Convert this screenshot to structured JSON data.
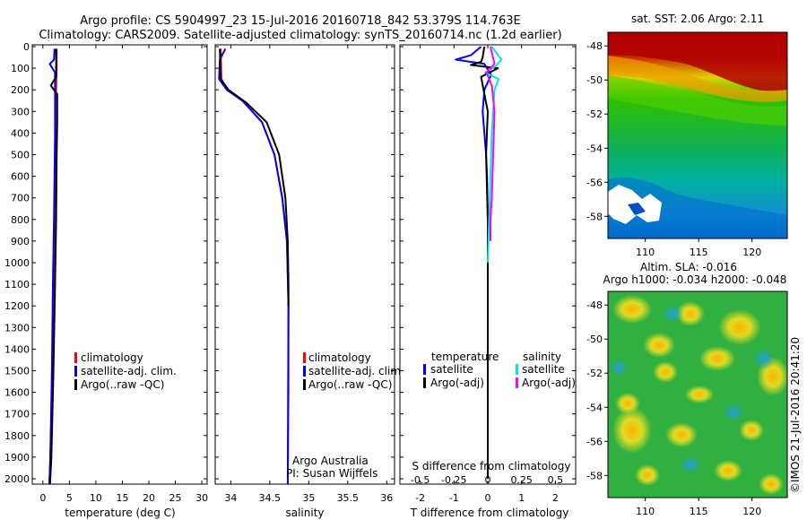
{
  "header": {
    "line1": "Argo profile: CS 5904997_23 15-Jul-2016 20160718_842 53.379S 114.763E",
    "line2": "Climatology: CARS2009. Satellite-adjusted climatology: synTS_20160714.nc (1.2d earlier)"
  },
  "colors": {
    "climatology": "#ff0000",
    "satellite": "#0000ff",
    "argo": "#000000",
    "sal_satellite": "#00e5e5",
    "sal_argo": "#ff00ff"
  },
  "chart_data": [
    {
      "type": "line",
      "xlabel": "temperature (deg C)",
      "xlim": [
        -2,
        31
      ],
      "xticks": [
        "0",
        "5",
        "10",
        "15",
        "20",
        "25",
        "30"
      ],
      "xtick_values": [
        0,
        5,
        10,
        15,
        20,
        25,
        30
      ],
      "ylim": [
        2060,
        0
      ],
      "yticks": [
        "0",
        "100",
        "200",
        "300",
        "400",
        "500",
        "600",
        "700",
        "800",
        "900",
        "1000",
        "1100",
        "1200",
        "1300",
        "1400",
        "1500",
        "1600",
        "1700",
        "1800",
        "1900",
        "2000"
      ],
      "ytick_values": [
        0,
        100,
        200,
        300,
        400,
        500,
        600,
        700,
        800,
        900,
        1000,
        1100,
        1200,
        1300,
        1400,
        1500,
        1600,
        1700,
        1800,
        1900,
        2000
      ],
      "legend": [
        "climatology",
        "satellite-adj. clim.",
        "Argo(..raw -QC)"
      ],
      "series": [
        {
          "name": "climatology",
          "x": [
            2.6,
            2.6,
            2.5,
            2.4,
            2.3,
            2.2,
            2.1,
            1.9,
            1.7,
            1.4,
            1.2
          ],
          "y": [
            10,
            100,
            200,
            400,
            600,
            800,
            1000,
            1300,
            1600,
            1900,
            2050
          ]
        },
        {
          "name": "satellite-adj. clim.",
          "x": [
            2.2,
            2.1,
            1.3,
            2.3,
            2.3,
            2.2,
            2.1,
            1.9,
            1.7,
            1.4,
            1.2
          ],
          "y": [
            10,
            60,
            80,
            120,
            400,
            600,
            800,
            1100,
            1500,
            1900,
            2050
          ]
        },
        {
          "name": "Argo(..raw -QC)",
          "x": [
            2.5,
            2.5,
            1.5,
            2.7,
            2.7,
            2.6,
            2.5,
            2.3,
            2.0,
            1.6,
            1.3
          ],
          "y": [
            10,
            140,
            180,
            220,
            350,
            500,
            800,
            1100,
            1500,
            1900,
            2050
          ]
        }
      ]
    },
    {
      "type": "line",
      "xlabel": "salinity",
      "xlim": [
        33.8,
        36.1
      ],
      "xticks": [
        "34",
        "34.5",
        "35",
        "35.5",
        "36"
      ],
      "xtick_values": [
        34,
        34.5,
        35,
        35.5,
        36
      ],
      "ylim": [
        2060,
        0
      ],
      "legend": [
        "climatology",
        "satellite-adj. clim.",
        "Argo(..raw -QC)"
      ],
      "annotation": [
        "Argo Australia",
        "PI: Susan Wijffels"
      ],
      "series": [
        {
          "name": "climatology",
          "x": [
            33.87,
            33.88,
            33.95,
            34.15,
            34.4,
            34.56,
            34.66,
            34.72,
            34.74,
            34.74,
            34.73
          ],
          "y": [
            10,
            150,
            200,
            250,
            350,
            500,
            700,
            900,
            1200,
            1600,
            2050
          ]
        },
        {
          "name": "satellite-adj. clim.",
          "x": [
            33.93,
            33.86,
            33.85,
            33.95,
            34.15,
            34.4,
            34.56,
            34.66,
            34.72,
            34.74,
            34.73
          ],
          "y": [
            10,
            60,
            150,
            200,
            250,
            350,
            500,
            700,
            900,
            1200,
            2050
          ]
        },
        {
          "name": "Argo(..raw -QC)",
          "x": [
            33.86,
            33.87,
            33.97,
            34.2,
            34.46,
            34.62,
            34.7,
            34.73,
            34.74,
            34.74
          ],
          "y": [
            10,
            150,
            200,
            260,
            350,
            500,
            700,
            900,
            1100,
            1200
          ]
        }
      ]
    },
    {
      "type": "line",
      "xlabel": "T difference from climatology",
      "xlim": [
        -2.6,
        2.6
      ],
      "xticks": [
        "-2",
        "-1",
        "0",
        "1",
        "2"
      ],
      "xtick_values": [
        -2,
        -1,
        0,
        1,
        2
      ],
      "s_xlabel": "S difference from climatology",
      "s_xticks": [
        "-0.5",
        "-0.25",
        "0",
        "0.25",
        "0.5"
      ],
      "s_xtick_values": [
        -0.5,
        -0.25,
        0,
        0.25,
        0.5
      ],
      "s_xlim": [
        -0.65,
        0.65
      ],
      "ylim": [
        2060,
        0
      ],
      "legend_temperature": {
        "title": "temperature",
        "items": [
          "satellite",
          "Argo(-adj)"
        ]
      },
      "legend_salinity": {
        "title": "salinity",
        "items": [
          "satellite",
          "Argo(-adj)"
        ]
      },
      "series": [
        {
          "name": "satellite",
          "x": [
            -0.2,
            -0.5,
            -0.95,
            -0.1,
            0.1,
            -0.1,
            -0.15,
            -0.1,
            -0.05,
            -0.02,
            0.0,
            0.0
          ],
          "y": [
            0,
            40,
            60,
            80,
            130,
            200,
            300,
            400,
            500,
            600,
            800,
            1000
          ]
        },
        {
          "name": "Argo(-adj)",
          "x": [
            -0.1,
            -0.15,
            -0.2,
            -0.5,
            0.3,
            -0.2,
            0.0,
            -0.05,
            0.0,
            0.0,
            0.0
          ],
          "y": [
            0,
            50,
            70,
            85,
            100,
            140,
            300,
            500,
            800,
            1200,
            2000
          ]
        },
        {
          "name": "satellite",
          "axis": "salinity",
          "x": [
            0.03,
            0.1,
            0.06,
            -0.02,
            0.08,
            0.05,
            0.03,
            0.02,
            0.01,
            0.0
          ],
          "y": [
            0,
            60,
            90,
            120,
            150,
            200,
            400,
            600,
            800,
            1000
          ]
        },
        {
          "name": "Argo(-adj)",
          "axis": "salinity",
          "x": [
            0.02,
            0.05,
            -0.01,
            0.03,
            0.05,
            0.04,
            0.03,
            0.02,
            0.02
          ],
          "y": [
            0,
            80,
            120,
            180,
            300,
            500,
            700,
            800,
            900
          ]
        }
      ]
    },
    {
      "type": "heatmap",
      "title": "sat. SST: 2.06 Argo: 2.11",
      "xticks": [
        "110",
        "115",
        "120"
      ],
      "xtick_values": [
        110,
        115,
        120
      ],
      "yticks": [
        "-48",
        "-50",
        "-52",
        "-54",
        "-56",
        "-58"
      ],
      "ytick_values": [
        -48,
        -50,
        -52,
        -54,
        -56,
        -58
      ],
      "xlim": [
        106.5,
        123.3
      ],
      "ylim": [
        -59.3,
        -47.2
      ]
    },
    {
      "type": "heatmap",
      "title": "Altim. SLA: -0.016",
      "subtitle": "Argo h1000: -0.034 h2000: -0.048",
      "xticks": [
        "110",
        "115",
        "120"
      ],
      "xtick_values": [
        110,
        115,
        120
      ],
      "yticks": [
        "-48",
        "-50",
        "-52",
        "-54",
        "-56",
        "-58"
      ],
      "ytick_values": [
        -48,
        -50,
        -52,
        -54,
        -56,
        -58
      ],
      "xlim": [
        106.5,
        123.3
      ],
      "ylim": [
        -59.3,
        -47.2
      ]
    }
  ],
  "footer": {
    "stamp": "©IMOS 21-Jul-2016 20:41:20"
  }
}
